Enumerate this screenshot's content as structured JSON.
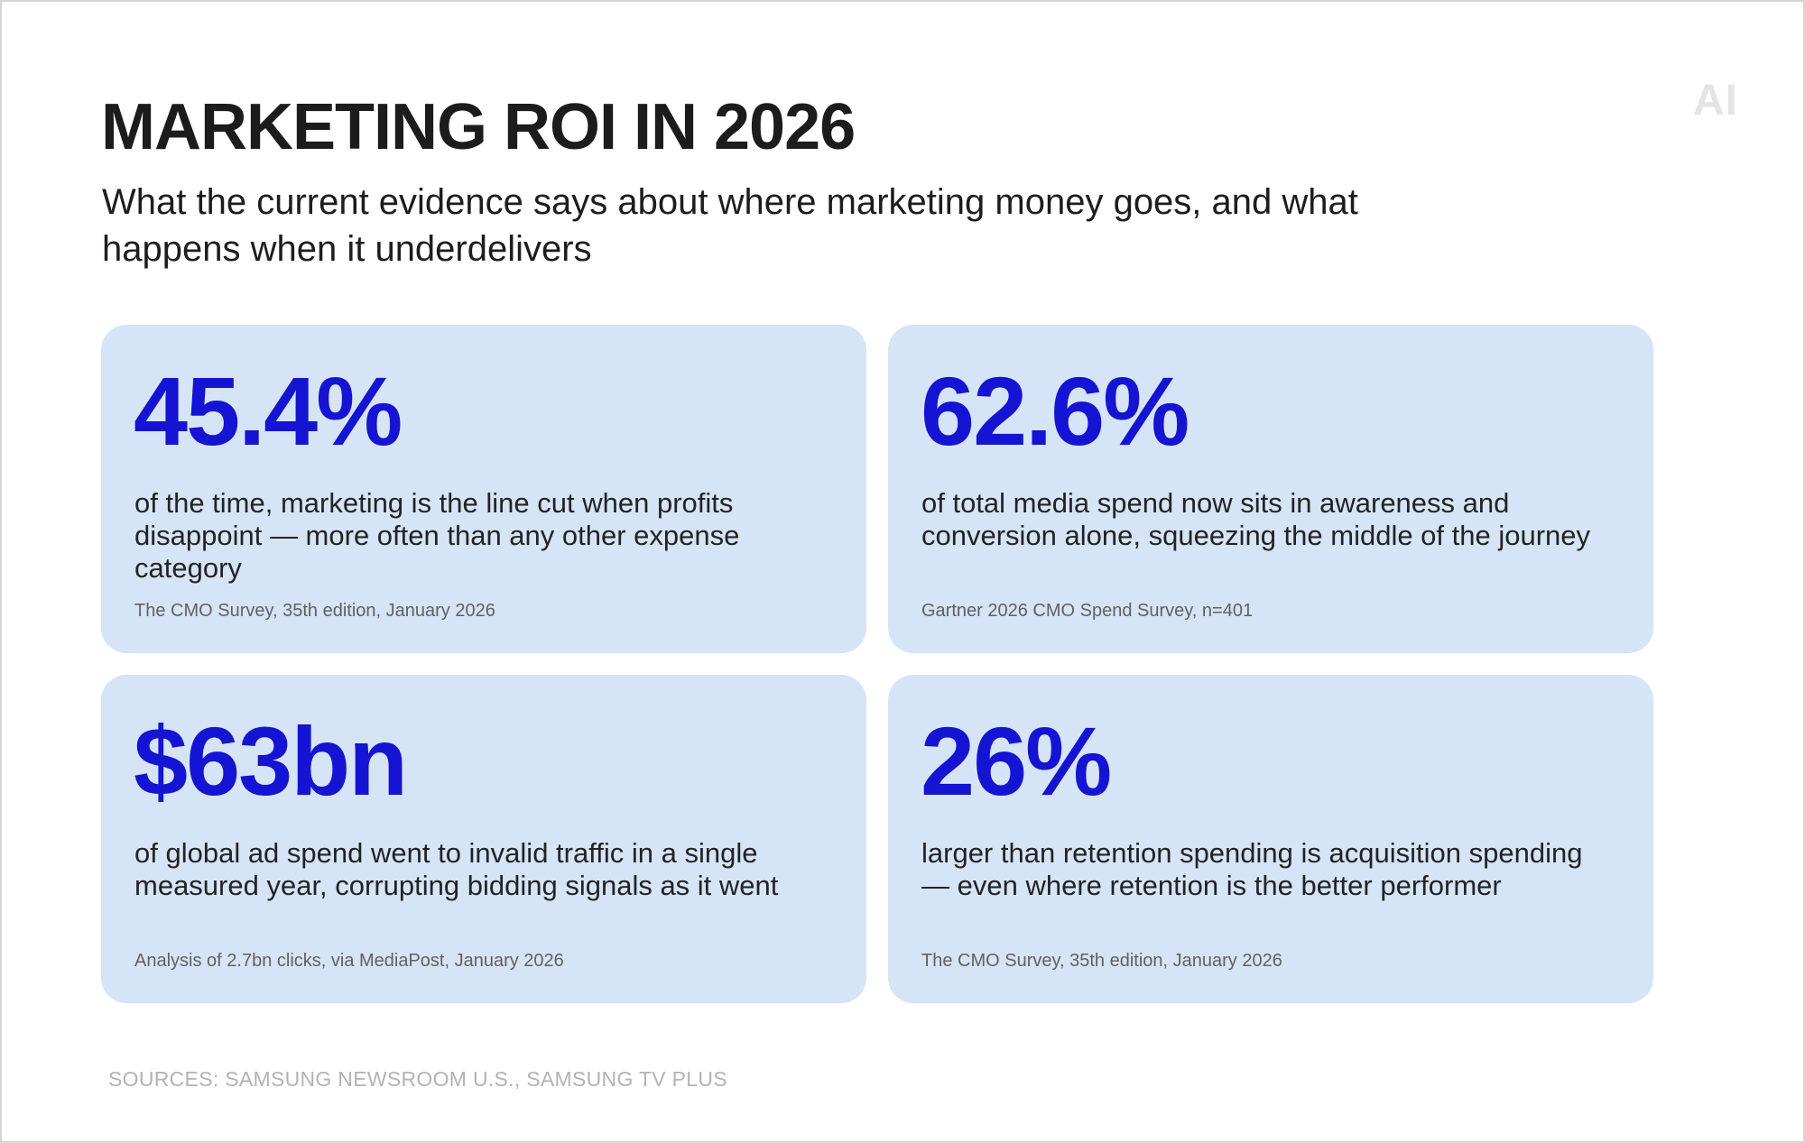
{
  "header": {
    "title": "MARKETING ROI IN 2026",
    "subtitle": "What the current evidence says about where marketing money goes, and what happens when it underdelivers",
    "logo_text": "AI"
  },
  "cards": [
    {
      "value": "45.4%",
      "description": "of the time, marketing is the line cut when profits disappoint — more often  than any other expense category",
      "source": "The CMO Survey, 35th edition, January 2026"
    },
    {
      "value": "62.6%",
      "description": "of total media spend now sits in awareness and conversion alone, squeezing the middle of the journey",
      "source": "Gartner 2026 CMO Spend Survey, n=401"
    },
    {
      "value": "$63bn",
      "description": "of global ad spend went to invalid traffic in a single measured year, corrupting bidding signals as it went",
      "source": "Analysis of 2.7bn clicks, via MediaPost, January 2026"
    },
    {
      "value": "26%",
      "description": "larger than retention spending is acquisition spending — even where retention is the better performer",
      "source": "The CMO Survey, 35th edition, January 2026"
    }
  ],
  "footer": {
    "sources": "SOURCES: SAMSUNG NEWSROOM U.S., SAMSUNG TV PLUS"
  },
  "colors": {
    "card_background": "#d6e4f7",
    "accent": "#1414d2",
    "title": "#1c1c1c",
    "footer": "#b3b3b3"
  }
}
